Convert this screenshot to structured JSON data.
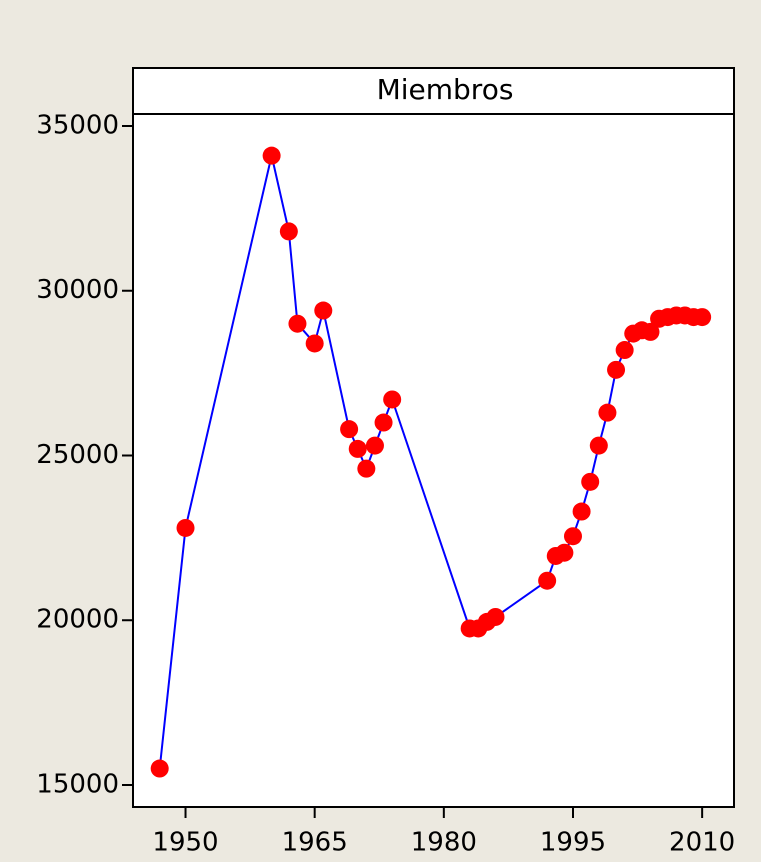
{
  "chart_data": {
    "type": "line",
    "title": "Miembros",
    "x": [
      1947,
      1950,
      1960,
      1962,
      1963,
      1965,
      1966,
      1969,
      1970,
      1971,
      1972,
      1973,
      1974,
      1983,
      1984,
      1985,
      1986,
      1992,
      1993,
      1994,
      1995,
      1996,
      1997,
      1998,
      1999,
      2000,
      2001,
      2002,
      2003,
      2004,
      2005,
      2006,
      2007,
      2008,
      2009,
      2010
    ],
    "series": [
      {
        "name": "Miembros",
        "color": "#0000ff",
        "marker_color": "#ff0000",
        "values": [
          15500,
          22800,
          34100,
          31800,
          29000,
          28400,
          29400,
          25800,
          25200,
          24600,
          25300,
          26000,
          26700,
          19750,
          19750,
          19950,
          20100,
          21200,
          21950,
          22050,
          22550,
          23300,
          24200,
          25300,
          26300,
          27600,
          28200,
          28700,
          28800,
          28750,
          29150,
          29200,
          29250,
          29250,
          29200,
          29200
        ]
      }
    ],
    "xlim": [
      1943.9,
      2013.7
    ],
    "xticks": [
      1950,
      1965,
      1980,
      1995,
      2010
    ],
    "ylim": [
      14332,
      35364
    ],
    "yticks": [
      15000,
      20000,
      25000,
      30000,
      35000
    ]
  }
}
